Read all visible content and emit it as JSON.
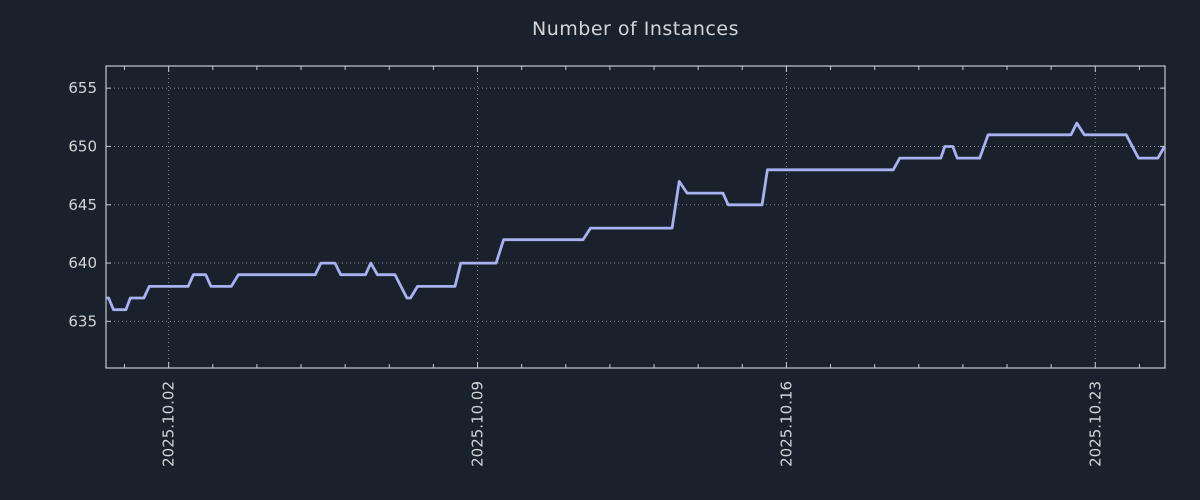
{
  "chart_data": {
    "type": "line",
    "title": "Number of Instances",
    "xlabel": "",
    "ylabel": "",
    "grid": "dotted",
    "legend": "none",
    "xlim": [
      0,
      24
    ],
    "ylim": [
      631,
      656.9
    ],
    "x_major_ticks": [
      {
        "t": 1.42,
        "label": "2025.10.02"
      },
      {
        "t": 8.42,
        "label": "2025.10.09"
      },
      {
        "t": 15.42,
        "label": "2025.10.16"
      },
      {
        "t": 22.42,
        "label": "2025.10.23"
      }
    ],
    "x_minor_tick_start": 0.42,
    "x_minor_tick_step": 1,
    "y_ticks": [
      {
        "v": 635,
        "label": "635"
      },
      {
        "v": 640,
        "label": "640"
      },
      {
        "v": 645,
        "label": "645"
      },
      {
        "v": 650,
        "label": "650"
      },
      {
        "v": 655,
        "label": "655"
      }
    ],
    "series": [
      {
        "name": "instances",
        "color": "#a9b1f0",
        "points": [
          [
            0.0,
            637
          ],
          [
            0.06,
            637
          ],
          [
            0.17,
            636
          ],
          [
            0.45,
            636
          ],
          [
            0.55,
            637
          ],
          [
            0.86,
            637
          ],
          [
            0.98,
            638
          ],
          [
            1.86,
            638
          ],
          [
            1.98,
            639
          ],
          [
            2.26,
            639
          ],
          [
            2.38,
            638
          ],
          [
            2.84,
            638
          ],
          [
            3.0,
            639
          ],
          [
            4.74,
            639
          ],
          [
            4.87,
            640
          ],
          [
            5.19,
            640
          ],
          [
            5.32,
            639
          ],
          [
            5.88,
            639
          ],
          [
            6.0,
            640
          ],
          [
            6.15,
            639
          ],
          [
            6.55,
            639
          ],
          [
            6.82,
            637
          ],
          [
            6.9,
            637
          ],
          [
            7.06,
            638
          ],
          [
            7.91,
            638
          ],
          [
            8.04,
            640
          ],
          [
            8.84,
            640
          ],
          [
            9.01,
            642
          ],
          [
            10.81,
            642
          ],
          [
            10.98,
            643
          ],
          [
            12.83,
            643
          ],
          [
            12.99,
            647
          ],
          [
            13.17,
            646
          ],
          [
            13.98,
            646
          ],
          [
            14.1,
            645
          ],
          [
            14.87,
            645
          ],
          [
            14.99,
            648
          ],
          [
            17.84,
            648
          ],
          [
            17.99,
            649
          ],
          [
            18.92,
            649
          ],
          [
            19.01,
            650
          ],
          [
            19.19,
            650
          ],
          [
            19.29,
            649
          ],
          [
            19.8,
            649
          ],
          [
            19.99,
            651
          ],
          [
            21.87,
            651
          ],
          [
            22.0,
            652
          ],
          [
            22.17,
            651
          ],
          [
            23.12,
            651
          ],
          [
            23.4,
            649
          ],
          [
            23.84,
            649
          ],
          [
            23.99,
            650
          ]
        ]
      }
    ],
    "colors": {
      "background": "#19212d",
      "text": "#d3d5d8",
      "axis": "#c6cacf",
      "grid": "#858c95",
      "line": "#a9b1f0"
    }
  }
}
